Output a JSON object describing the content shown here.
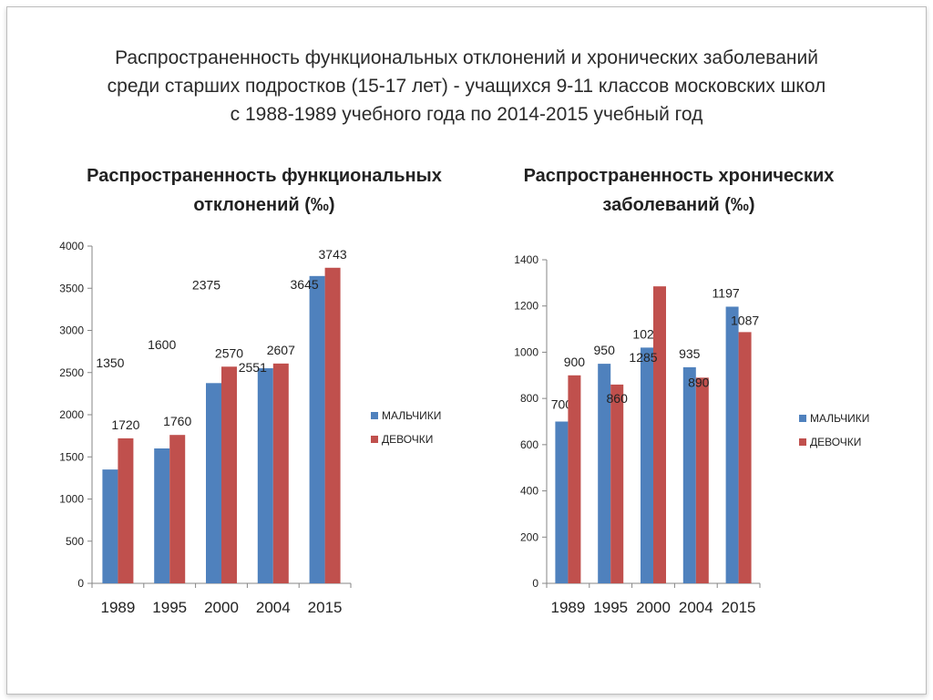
{
  "main_title": {
    "lines": [
      "Распространенность функциональных отклонений и хронических заболеваний",
      "среди  старших подростков (15-17 лет) - учащихся 9-11 классов московских школ",
      "с 1988-1989 учебного года по 2014-2015 учебный год"
    ]
  },
  "colors": {
    "series_boys": "#4f81bd",
    "series_girls": "#c0504d",
    "axis": "#868686"
  },
  "chart_data": [
    {
      "type": "bar",
      "title_lines": [
        "Распространенность функциональных",
        "отклонений (‰)"
      ],
      "categories": [
        "1989",
        "1995",
        "2000",
        "2004",
        "2015"
      ],
      "series": [
        {
          "name": "МАЛЬЧИКИ",
          "values": [
            1350,
            1600,
            2375,
            2551,
            3645
          ]
        },
        {
          "name": "ДЕВОЧКИ",
          "values": [
            1720,
            1760,
            2570,
            2607,
            3743
          ]
        }
      ],
      "yticks": [
        "0",
        "500",
        "1000",
        "1500",
        "2000",
        "2500",
        "3000",
        "3500",
        "4000"
      ],
      "ylim": [
        0,
        4000
      ],
      "legend": "right"
    },
    {
      "type": "bar",
      "title_lines": [
        "Распространенность хронических",
        "заболеваний (‰)"
      ],
      "categories": [
        "1989",
        "1995",
        "2000",
        "2004",
        "2015"
      ],
      "series": [
        {
          "name": "МАЛЬЧИКИ",
          "values": [
            700,
            950,
            1020,
            935,
            1197
          ]
        },
        {
          "name": "ДЕВОЧКИ",
          "values": [
            900,
            860,
            1285,
            890,
            1087
          ]
        }
      ],
      "yticks": [
        "0",
        "200",
        "400",
        "600",
        "800",
        "1000",
        "1200",
        "1400"
      ],
      "ylim": [
        0,
        1400
      ],
      "legend": "right"
    }
  ]
}
